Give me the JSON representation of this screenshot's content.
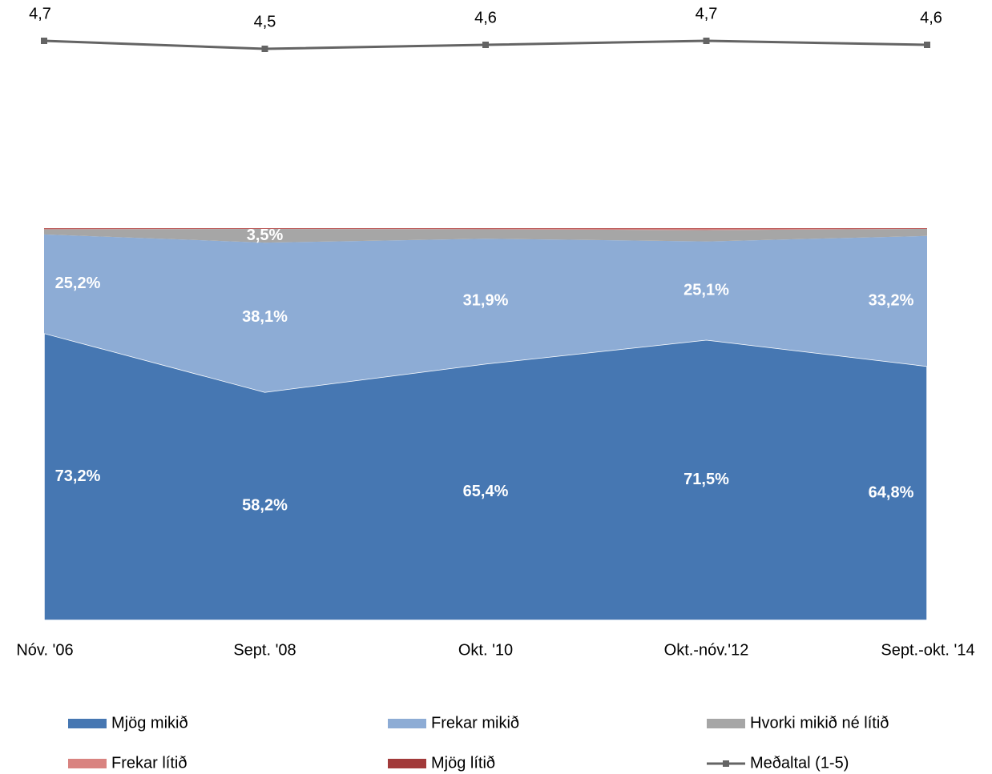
{
  "chart_data": {
    "type": "stacked_area_line",
    "categories": [
      "Nóv. '06",
      "Sept. '08",
      "Okt. '10",
      "Okt.-nóv.'12",
      "Sept.-okt. '14"
    ],
    "ylim": [
      0,
      100
    ],
    "y2lim": [
      4,
      5
    ],
    "series": [
      {
        "name": "Mjög mikið",
        "color": "#4677b2",
        "values": [
          73.2,
          58.2,
          65.4,
          71.5,
          64.8
        ],
        "value_labels": [
          "73,2%",
          "58,2%",
          "65,4%",
          "71,5%",
          "64,8%"
        ]
      },
      {
        "name": "Frekar mikið",
        "color": "#8dacd5",
        "values": [
          25.2,
          38.1,
          31.9,
          25.1,
          33.2
        ],
        "value_labels": [
          "25,2%",
          "38,1%",
          "31,9%",
          "25,1%",
          "33,2%"
        ]
      },
      {
        "name": "Hvorki mikið né lítið",
        "color": "#a6a6a6",
        "values": [
          1.3,
          3.5,
          2.4,
          2.9,
          1.8
        ],
        "value_labels": [
          null,
          "3,5%",
          null,
          null,
          null
        ]
      },
      {
        "name": "Frekar lítið",
        "color": "#d98380",
        "values": [
          0.2,
          0.1,
          0.2,
          0.4,
          0.1
        ]
      },
      {
        "name": "Mjög lítið",
        "color": "#a23a3a",
        "values": [
          0.1,
          0.1,
          0.1,
          0.1,
          0.1
        ]
      },
      {
        "name": "Meðaltal (1-5)",
        "color": "#646464",
        "axis": "y2",
        "values": [
          4.7,
          4.5,
          4.6,
          4.7,
          4.6
        ],
        "value_labels": [
          "4,7",
          "4,5",
          "4,6",
          "4,7",
          "4,6"
        ]
      }
    ]
  }
}
